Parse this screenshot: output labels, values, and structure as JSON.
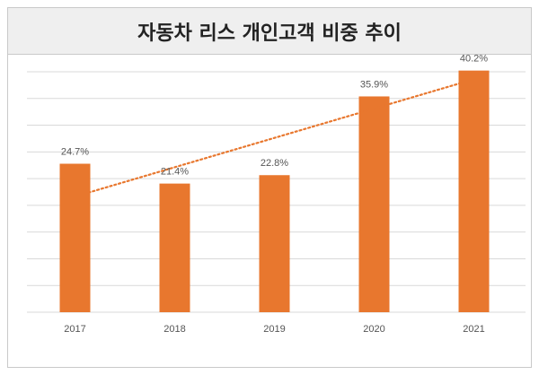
{
  "chart_data": {
    "type": "bar",
    "title": "자동차 리스 개인고객 비중 추이",
    "categories": [
      "2017",
      "2018",
      "2019",
      "2020",
      "2021"
    ],
    "values": [
      24.7,
      21.4,
      22.8,
      35.9,
      40.2
    ],
    "data_labels": [
      "24.7%",
      "21.4%",
      "22.8%",
      "35.9%",
      "40.2%"
    ],
    "ylim": [
      0,
      40
    ],
    "y_gridlines": 9,
    "trendline": "linear",
    "xlabel": "",
    "ylabel": "",
    "grid": true,
    "legend": "none",
    "colors": {
      "bar": "#E8772E",
      "trend": "#E8772E",
      "grid": "#d9d9d9"
    }
  }
}
